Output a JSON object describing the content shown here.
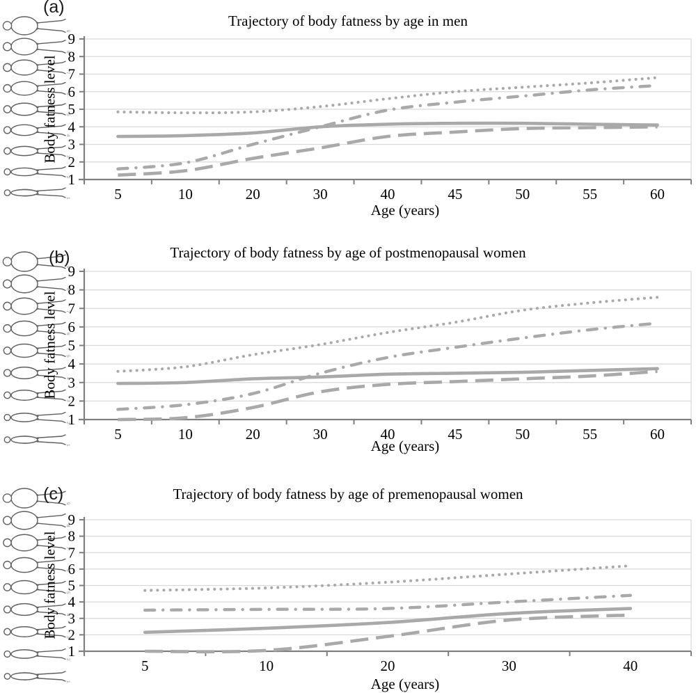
{
  "page": {
    "background": "#ffffff",
    "description": "Three stacked line charts of body fatness trajectory by age with body-silhouette scale figures"
  },
  "colors": {
    "series_line": "#a9a9a9",
    "gridline": "#d9d9d9",
    "axis": "#7f7f7f",
    "text": "#000000",
    "figure_stroke": "#5f5f5f",
    "figure_number": "#8a8a8a"
  },
  "chart_data": [
    {
      "type": "line",
      "panel_label": "(a)",
      "title": "Trajectory of body fatness by age in men",
      "xlabel": "Age (years)",
      "ylabel": "Body fatness level",
      "categories": [
        5,
        10,
        20,
        30,
        40,
        45,
        50,
        55,
        60
      ],
      "ylim": [
        1,
        9
      ],
      "yticks": [
        1,
        2,
        3,
        4,
        5,
        6,
        7,
        8,
        9
      ],
      "grid": true,
      "legend": "none",
      "x_axis_type": "categorical-equal-spacing",
      "figure_column": {
        "gender": "male",
        "levels_top_to_bottom": [
          9,
          8,
          7,
          6,
          5,
          4,
          3,
          2,
          1
        ]
      },
      "series": [
        {
          "name": "upper-dotted",
          "style": "dotted",
          "values": [
            4.85,
            4.8,
            4.85,
            5.15,
            5.6,
            6.0,
            6.25,
            6.5,
            6.8
          ]
        },
        {
          "name": "dash-dot",
          "style": "dashdot",
          "values": [
            1.6,
            1.95,
            3.0,
            4.0,
            4.95,
            5.4,
            5.75,
            6.1,
            6.35
          ]
        },
        {
          "name": "solid",
          "style": "solid",
          "values": [
            3.45,
            3.5,
            3.65,
            4.0,
            4.15,
            4.2,
            4.2,
            4.15,
            4.1
          ]
        },
        {
          "name": "lower-dashed",
          "style": "dashed",
          "values": [
            1.25,
            1.5,
            2.2,
            2.8,
            3.45,
            3.7,
            3.9,
            3.95,
            4.0
          ]
        }
      ]
    },
    {
      "type": "line",
      "panel_label": "(b)",
      "title": "Trajectory of body fatness by age of postmenopausal women",
      "xlabel": "Age (years)",
      "ylabel": "Body fatness level",
      "categories": [
        5,
        10,
        20,
        30,
        40,
        45,
        50,
        55,
        60
      ],
      "ylim": [
        1,
        9
      ],
      "yticks": [
        1,
        2,
        3,
        4,
        5,
        6,
        7,
        8,
        9
      ],
      "grid": true,
      "legend": "none",
      "x_axis_type": "categorical-equal-spacing",
      "figure_column": {
        "gender": "female",
        "levels_top_to_bottom": [
          9,
          8,
          7,
          6,
          5,
          4,
          3,
          2,
          1
        ]
      },
      "series": [
        {
          "name": "upper-dotted",
          "style": "dotted",
          "values": [
            3.6,
            3.85,
            4.5,
            5.05,
            5.7,
            6.25,
            6.9,
            7.3,
            7.6
          ]
        },
        {
          "name": "dash-dot",
          "style": "dashdot",
          "values": [
            1.55,
            1.8,
            2.4,
            3.5,
            4.35,
            4.9,
            5.4,
            5.85,
            6.2
          ]
        },
        {
          "name": "solid",
          "style": "solid",
          "values": [
            2.95,
            3.0,
            3.2,
            3.3,
            3.45,
            3.5,
            3.55,
            3.65,
            3.75
          ]
        },
        {
          "name": "lower-dashed",
          "style": "dashed",
          "values": [
            1.0,
            1.1,
            1.65,
            2.5,
            2.9,
            3.05,
            3.2,
            3.35,
            3.6
          ]
        }
      ]
    },
    {
      "type": "line",
      "panel_label": "(c)",
      "title": "Trajectory of body fatness by age of premenopausal women",
      "xlabel": "Age (years)",
      "ylabel": "Body fatness level",
      "categories": [
        5,
        10,
        20,
        30,
        40
      ],
      "ylim": [
        1,
        9
      ],
      "yticks": [
        1,
        2,
        3,
        4,
        5,
        6,
        7,
        8,
        9
      ],
      "grid": true,
      "legend": "none",
      "x_axis_type": "categorical-equal-spacing",
      "figure_column": {
        "gender": "female",
        "levels_top_to_bottom": [
          9,
          8,
          7,
          6,
          5,
          4,
          3,
          2,
          1
        ]
      },
      "series": [
        {
          "name": "upper-dotted",
          "style": "dotted",
          "values": [
            4.7,
            4.85,
            5.2,
            5.7,
            6.2
          ]
        },
        {
          "name": "dash-dot",
          "style": "dashdot",
          "values": [
            3.5,
            3.55,
            3.6,
            4.0,
            4.4
          ]
        },
        {
          "name": "solid",
          "style": "solid",
          "values": [
            2.15,
            2.4,
            2.75,
            3.3,
            3.6
          ]
        },
        {
          "name": "lower-dashed",
          "style": "dashed",
          "values": [
            1.0,
            1.05,
            1.9,
            2.9,
            3.2
          ]
        }
      ]
    }
  ]
}
